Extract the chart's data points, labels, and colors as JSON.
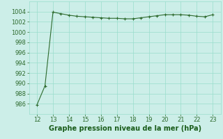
{
  "x": [
    12,
    12.5,
    13,
    13.5,
    14,
    14.5,
    15,
    15.5,
    16,
    16.5,
    17,
    17.5,
    18,
    18.5,
    19,
    19.5,
    20,
    20.5,
    21,
    21.5,
    22,
    22.5,
    23
  ],
  "y": [
    985.8,
    989.5,
    1003.9,
    1003.6,
    1003.3,
    1003.1,
    1003.0,
    1002.9,
    1002.8,
    1002.7,
    1002.7,
    1002.6,
    1002.6,
    1002.8,
    1003.0,
    1003.2,
    1003.4,
    1003.4,
    1003.4,
    1003.3,
    1003.1,
    1003.0,
    1003.4
  ],
  "line_color": "#2d6a2d",
  "marker_color": "#2d6a2d",
  "bg_color": "#cceee8",
  "grid_color": "#99ddcc",
  "xlabel": "Graphe pression niveau de la mer (hPa)",
  "xlabel_color": "#1a5c1a",
  "xlabel_fontsize": 7,
  "xlim": [
    11.5,
    23.5
  ],
  "ylim": [
    984,
    1006
  ],
  "xticks": [
    12,
    13,
    14,
    15,
    16,
    17,
    18,
    19,
    20,
    21,
    22,
    23
  ],
  "yticks": [
    986,
    988,
    990,
    992,
    994,
    996,
    998,
    1000,
    1002,
    1004
  ],
  "tick_color": "#2d6a2d",
  "tick_fontsize": 6,
  "linewidth": 0.8,
  "markersize": 3
}
